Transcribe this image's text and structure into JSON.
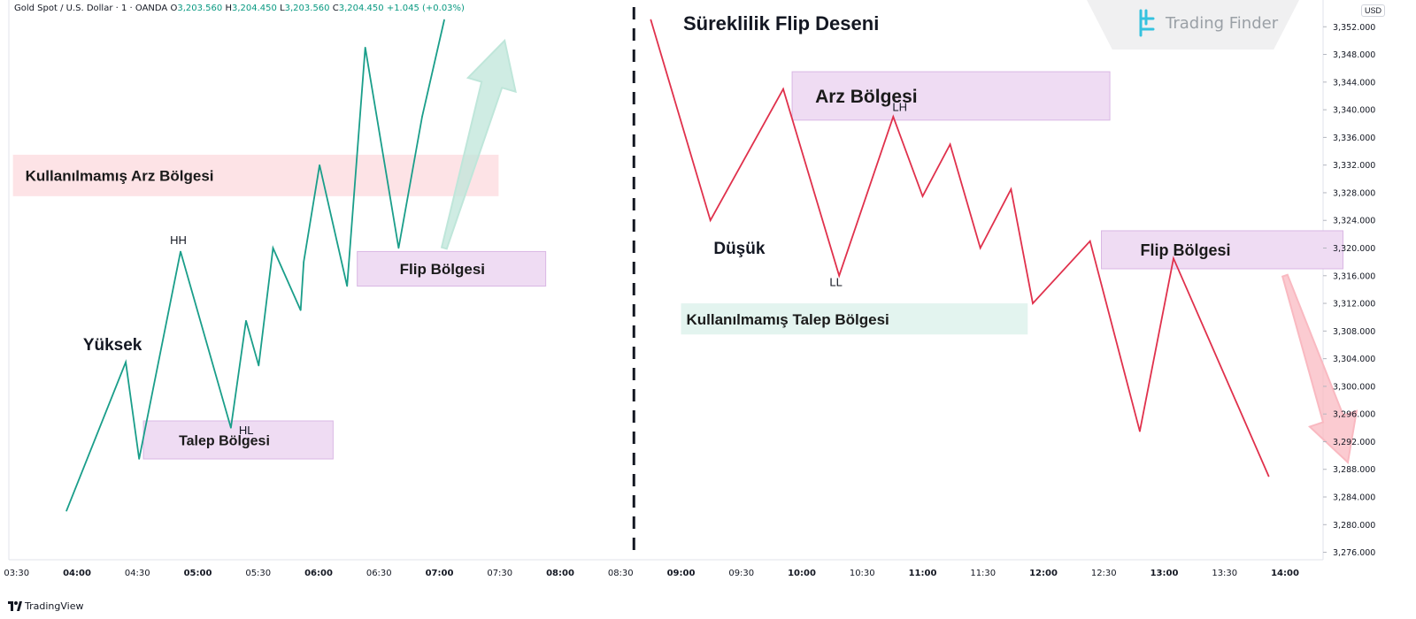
{
  "header": {
    "symbol_line": "Gold Spot / U.S. Dollar · 1 · OANDA",
    "open_label": "O",
    "open_value": "3,203.560",
    "high_label": "H",
    "high_value": "3,204.450",
    "low_label": "L",
    "low_value": "3,203.560",
    "close_label": "C",
    "close_value": "3,204.450",
    "change": "+1.045 (+0.03%)"
  },
  "brand": {
    "logo_text": "Trading Finder",
    "tradingview": "TradingView"
  },
  "colors": {
    "bull": "#1a9e8a",
    "bear": "#e0314c",
    "zone_purple": "#efdcf3",
    "zone_purple_border": "#d9b7e4",
    "zone_pink": "#fde3e6",
    "zone_green": "#e3f4ef",
    "arrow_green": "#bfe6da",
    "arrow_red": "#f9b9c1"
  },
  "chart_data": {
    "type": "line",
    "title": "Süreklilik Flip Deseni",
    "price_axis": {
      "currency": "USD",
      "ticks": [
        "3,352.000",
        "3,348.000",
        "3,344.000",
        "3,340.000",
        "3,336.000",
        "3,332.000",
        "3,328.000",
        "3,324.000",
        "3,320.000",
        "3,316.000",
        "3,312.000",
        "3,308.000",
        "3,304.000",
        "3,300.000",
        "3,296.000",
        "3,292.000",
        "3,288.000",
        "3,284.000",
        "3,280.000",
        "3,276.000"
      ],
      "ylim": [
        3274.5,
        3356.0
      ]
    },
    "time_axis": {
      "ticks": [
        "03:30",
        "04:00",
        "04:30",
        "05:00",
        "05:30",
        "06:00",
        "06:30",
        "07:00",
        "07:30",
        "08:00",
        "08:30",
        "09:00",
        "09:30",
        "10:00",
        "10:30",
        "11:00",
        "11:30",
        "12:00",
        "12:30",
        "13:00",
        "13:30",
        "14:00"
      ],
      "bold": [
        "04:00",
        "05:00",
        "06:00",
        "07:00",
        "08:00",
        "09:00",
        "10:00",
        "11:00",
        "12:00",
        "13:00",
        "14:00"
      ]
    },
    "series": [
      {
        "x": [
          3.913,
          4.404,
          4.514,
          4.857,
          5.274,
          5.399,
          5.504,
          5.623,
          5.851,
          5.877,
          6.008,
          6.236,
          6.386,
          6.662,
          6.857,
          7.04
        ],
        "y": [
          3282.0,
          3303.5,
          3289.5,
          3319.5,
          3294.0,
          3309.5,
          3303.0,
          3320.0,
          3311.0,
          3318.0,
          3332.0,
          3314.5,
          3349.0,
          3320.0,
          3339.0,
          3353.0
        ]
      },
      {
        "x": [
          8.75,
          9.243,
          9.846,
          10.309,
          10.757,
          11.0,
          11.228,
          11.478,
          11.732,
          11.912,
          12.386,
          12.798,
          13.077,
          13.865
        ],
        "y": [
          3353.0,
          3324.0,
          3343.0,
          3316.0,
          3339.0,
          3327.5,
          3335.0,
          3320.0,
          3328.5,
          3312.0,
          3321.0,
          3293.5,
          3318.5,
          3287.0
        ]
      }
    ],
    "zones": [
      {
        "label": "Kullanılmamış Arz Bölgesi",
        "x": [
          3.47,
          7.49
        ],
        "y": [
          3327.5,
          3333.5
        ],
        "kind": "pink"
      },
      {
        "label": "Talep Bölgesi",
        "x": [
          4.55,
          6.12
        ],
        "y": [
          3289.5,
          3295.0
        ],
        "kind": "purple"
      },
      {
        "label": "Flip Bölgesi",
        "x": [
          6.32,
          7.88
        ],
        "y": [
          3314.5,
          3319.5
        ],
        "kind": "purple"
      },
      {
        "label": "Arz Bölgesi",
        "x": [
          9.92,
          12.55
        ],
        "y": [
          3338.5,
          3345.5
        ],
        "kind": "purple"
      },
      {
        "label": "Flip Bölgesi",
        "x": [
          12.48,
          14.48
        ],
        "y": [
          3317.0,
          3322.5
        ],
        "kind": "purple"
      },
      {
        "label": "Kullanılmamış Talep Bölgesi",
        "x": [
          9.0,
          11.87
        ],
        "y": [
          3307.5,
          3312.0
        ],
        "kind": "green"
      }
    ],
    "annotations": [
      {
        "text": "Yüksek",
        "x": 4.05,
        "y": 3305.2,
        "size": 19,
        "bold": true
      },
      {
        "text": "HH",
        "x": 4.77,
        "y": 3320.6,
        "size": 13
      },
      {
        "text": "HL",
        "x": 5.34,
        "y": 3293.1,
        "size": 13
      },
      {
        "text": "Düşük",
        "x": 9.27,
        "y": 3319.2,
        "size": 19,
        "bold": true
      },
      {
        "text": "LH",
        "x": 10.75,
        "y": 3339.8,
        "size": 13
      },
      {
        "text": "LL",
        "x": 10.23,
        "y": 3314.5,
        "size": 13
      }
    ],
    "separator_x": 8.61,
    "direction_arrows": [
      {
        "kind": "up",
        "from": [
          7.04,
          3320.0
        ],
        "to": [
          7.54,
          3350.0
        ]
      },
      {
        "kind": "down",
        "from": [
          14.0,
          3316.0
        ],
        "to": [
          14.52,
          3289.0
        ]
      }
    ]
  }
}
